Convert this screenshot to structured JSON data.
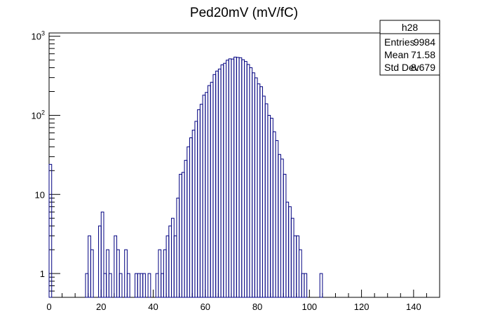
{
  "chart_data": {
    "type": "histogram",
    "title": "Ped20mV (mV/fC)",
    "xlabel": "",
    "ylabel": "",
    "xlim": [
      0,
      150
    ],
    "ylim": [
      0.5,
      1100
    ],
    "y_scale": "log",
    "grid": false,
    "line_color": "#000080",
    "bin_width": 1,
    "x_ticks": [
      0,
      20,
      40,
      60,
      80,
      100,
      120,
      140
    ],
    "x_tick_labels": [
      "0",
      "20",
      "40",
      "60",
      "80",
      "100",
      "120",
      "140"
    ],
    "y_ticks": [
      1,
      10,
      100,
      1000
    ],
    "y_tick_labels": [
      "1",
      "10",
      "10²",
      "10³"
    ],
    "bins": [
      {
        "x": 0,
        "count": 24
      },
      {
        "x": 14,
        "count": 1
      },
      {
        "x": 15,
        "count": 3
      },
      {
        "x": 16,
        "count": 2
      },
      {
        "x": 19,
        "count": 4
      },
      {
        "x": 20,
        "count": 6
      },
      {
        "x": 21,
        "count": 1
      },
      {
        "x": 22,
        "count": 2
      },
      {
        "x": 23,
        "count": 1
      },
      {
        "x": 25,
        "count": 3
      },
      {
        "x": 26,
        "count": 2
      },
      {
        "x": 27,
        "count": 1
      },
      {
        "x": 29,
        "count": 2
      },
      {
        "x": 30,
        "count": 1
      },
      {
        "x": 33,
        "count": 1
      },
      {
        "x": 34,
        "count": 1
      },
      {
        "x": 35,
        "count": 1
      },
      {
        "x": 36,
        "count": 1
      },
      {
        "x": 38,
        "count": 1
      },
      {
        "x": 41,
        "count": 1
      },
      {
        "x": 42,
        "count": 2
      },
      {
        "x": 43,
        "count": 1
      },
      {
        "x": 44,
        "count": 2
      },
      {
        "x": 45,
        "count": 3
      },
      {
        "x": 46,
        "count": 4
      },
      {
        "x": 47,
        "count": 5
      },
      {
        "x": 48,
        "count": 3
      },
      {
        "x": 49,
        "count": 9
      },
      {
        "x": 50,
        "count": 18
      },
      {
        "x": 51,
        "count": 19
      },
      {
        "x": 52,
        "count": 27
      },
      {
        "x": 53,
        "count": 40
      },
      {
        "x": 54,
        "count": 52
      },
      {
        "x": 55,
        "count": 65
      },
      {
        "x": 56,
        "count": 84
      },
      {
        "x": 57,
        "count": 118
      },
      {
        "x": 58,
        "count": 138
      },
      {
        "x": 59,
        "count": 180
      },
      {
        "x": 60,
        "count": 195
      },
      {
        "x": 61,
        "count": 238
      },
      {
        "x": 62,
        "count": 262
      },
      {
        "x": 63,
        "count": 328
      },
      {
        "x": 64,
        "count": 363
      },
      {
        "x": 65,
        "count": 385
      },
      {
        "x": 66,
        "count": 435
      },
      {
        "x": 67,
        "count": 455
      },
      {
        "x": 68,
        "count": 498
      },
      {
        "x": 69,
        "count": 518
      },
      {
        "x": 70,
        "count": 515
      },
      {
        "x": 71,
        "count": 545
      },
      {
        "x": 72,
        "count": 540
      },
      {
        "x": 73,
        "count": 535
      },
      {
        "x": 74,
        "count": 505
      },
      {
        "x": 75,
        "count": 480
      },
      {
        "x": 76,
        "count": 440
      },
      {
        "x": 77,
        "count": 400
      },
      {
        "x": 78,
        "count": 345
      },
      {
        "x": 79,
        "count": 298
      },
      {
        "x": 80,
        "count": 250
      },
      {
        "x": 81,
        "count": 230
      },
      {
        "x": 82,
        "count": 175
      },
      {
        "x": 83,
        "count": 140
      },
      {
        "x": 84,
        "count": 100
      },
      {
        "x": 85,
        "count": 92
      },
      {
        "x": 86,
        "count": 62
      },
      {
        "x": 87,
        "count": 48
      },
      {
        "x": 88,
        "count": 32
      },
      {
        "x": 89,
        "count": 28
      },
      {
        "x": 90,
        "count": 18
      },
      {
        "x": 91,
        "count": 8
      },
      {
        "x": 92,
        "count": 7
      },
      {
        "x": 93,
        "count": 5
      },
      {
        "x": 94,
        "count": 3
      },
      {
        "x": 95,
        "count": 3
      },
      {
        "x": 96,
        "count": 2
      },
      {
        "x": 97,
        "count": 1
      },
      {
        "x": 98,
        "count": 1
      },
      {
        "x": 104,
        "count": 1
      }
    ],
    "stats": {
      "name": "h28",
      "rows": [
        {
          "label": "Entries",
          "value": "9984"
        },
        {
          "label": "Mean",
          "value": "71.58"
        },
        {
          "label": "Std Dev",
          "value": "8.679"
        }
      ]
    }
  }
}
